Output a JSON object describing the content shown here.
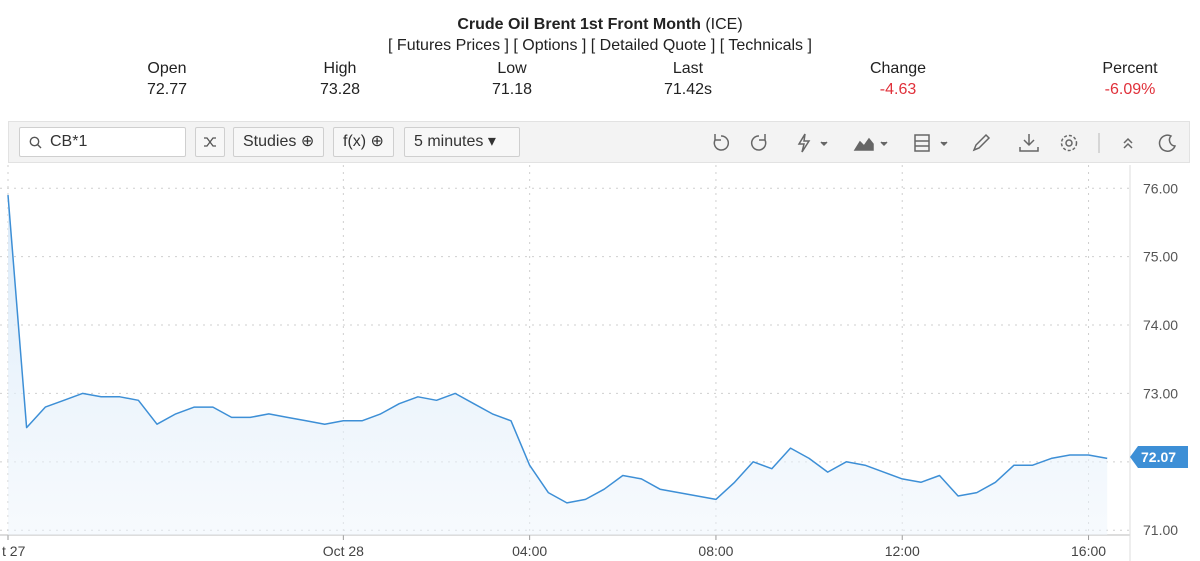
{
  "header": {
    "title": "Crude Oil Brent 1st Front Month",
    "exchange": "(ICE)",
    "links": [
      "[ Futures Prices ]",
      "[ Options ]",
      "[ Detailed Quote ]",
      "[ Technicals ]"
    ]
  },
  "quote": [
    {
      "label": "Open",
      "value": "72.77"
    },
    {
      "label": "High",
      "value": "73.28"
    },
    {
      "label": "Low",
      "value": "71.18"
    },
    {
      "label": "Last",
      "value": "71.42s"
    },
    {
      "label": "Change",
      "value": "-4.63"
    },
    {
      "label": "Percent",
      "value": "-6.09%"
    }
  ],
  "toolbar": {
    "symbol": "CB*1",
    "studies": "Studies",
    "functions": "f(x)",
    "interval": "5 minutes"
  },
  "chart_data": {
    "type": "line",
    "categories": [
      "t 27",
      null,
      null,
      null,
      null,
      null,
      null,
      null,
      null,
      null,
      null,
      null,
      null,
      null,
      null,
      null,
      null,
      null,
      "Oct 28",
      null,
      null,
      null,
      null,
      null,
      null,
      null,
      null,
      null,
      "04:00",
      null,
      null,
      null,
      null,
      null,
      null,
      null,
      null,
      null,
      "08:00",
      null,
      null,
      null,
      null,
      null,
      null,
      null,
      null,
      null,
      "12:00",
      null,
      null,
      null,
      null,
      null,
      null,
      null,
      null,
      null,
      "16:00",
      null
    ],
    "series": [
      {
        "color": "#3d8fd6",
        "values": [
          75.9,
          72.5,
          72.8,
          72.9,
          73.0,
          72.95,
          72.95,
          72.9,
          72.55,
          72.7,
          72.8,
          72.8,
          72.65,
          72.65,
          72.7,
          72.65,
          72.6,
          72.55,
          72.6,
          72.6,
          72.7,
          72.85,
          72.95,
          72.9,
          73.0,
          72.85,
          72.7,
          72.6,
          71.95,
          71.55,
          71.4,
          71.45,
          71.6,
          71.8,
          71.75,
          71.6,
          71.55,
          71.5,
          71.45,
          71.7,
          72.0,
          71.9,
          72.2,
          72.05,
          71.85,
          72.0,
          71.95,
          71.85,
          71.75,
          71.7,
          71.8,
          71.5,
          71.55,
          71.7,
          71.95,
          71.95,
          72.05,
          72.1,
          72.1,
          72.05
        ]
      }
    ],
    "last_value": 72.07,
    "ylim": [
      70.93,
      76.34
    ],
    "yticks": [
      {
        "value": 71,
        "label": "71.00"
      },
      {
        "value": 72,
        "label": "72.00"
      },
      {
        "value": 73,
        "label": "73.00"
      },
      {
        "value": 74,
        "label": "74.00"
      },
      {
        "value": 75,
        "label": "75.00"
      },
      {
        "value": 76,
        "label": "76.00"
      }
    ],
    "grid": true
  }
}
